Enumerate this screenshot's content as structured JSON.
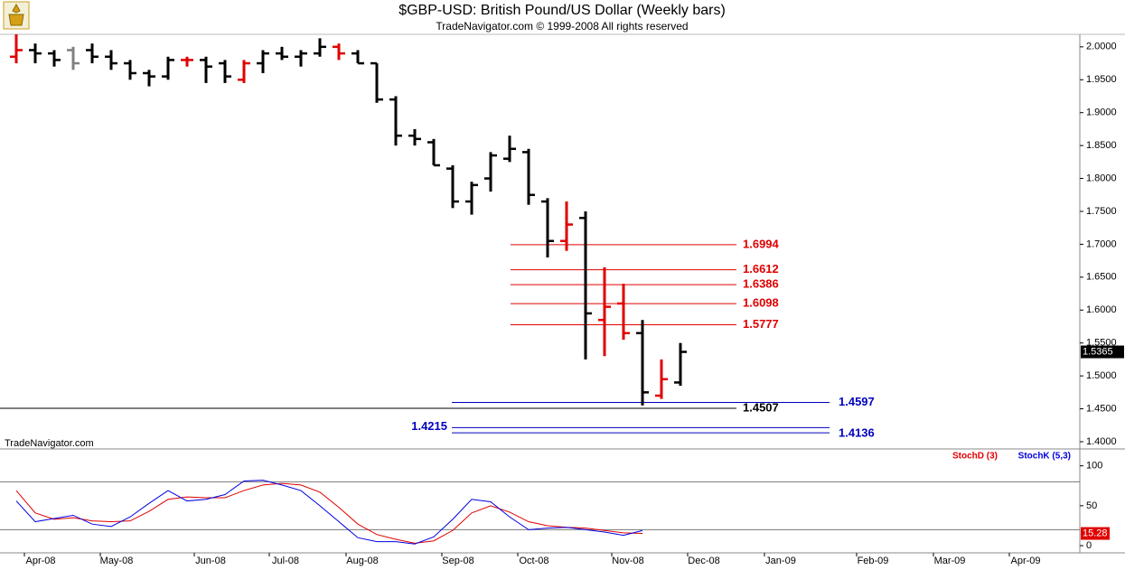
{
  "chart_data": [
    {
      "type": "ohlc",
      "title": "$GBP-USD:  British Pound/US Dollar  (Weekly bars)",
      "subtitle": "TradeNavigator.com © 1999-2008 All rights reserved",
      "watermark": "TradeNavigator.com",
      "open": [
        1.985,
        1.995,
        1.99,
        1.995,
        1.995,
        1.985,
        1.975,
        1.96,
        1.955,
        1.98,
        1.98,
        1.975,
        1.95,
        1.975,
        1.99,
        1.985,
        1.99,
        2.0,
        1.99,
        1.975,
        1.92,
        1.865,
        1.855,
        1.815,
        1.765,
        1.8,
        1.83,
        1.84,
        1.765,
        1.705,
        1.74,
        1.585,
        1.61,
        1.565,
        1.47,
        1.49
      ],
      "high": [
        2.019,
        2.005,
        1.995,
        2.0,
        2.005,
        1.995,
        1.98,
        1.965,
        1.985,
        1.985,
        1.985,
        1.98,
        1.98,
        1.995,
        2.0,
        1.995,
        2.013,
        2.005,
        1.995,
        1.975,
        1.925,
        1.875,
        1.86,
        1.82,
        1.795,
        1.84,
        1.865,
        1.845,
        1.77,
        1.765,
        1.75,
        1.665,
        1.64,
        1.585,
        1.525,
        1.55
      ],
      "low": [
        1.975,
        1.975,
        1.97,
        1.965,
        1.975,
        1.965,
        1.95,
        1.94,
        1.95,
        1.97,
        1.945,
        1.945,
        1.945,
        1.96,
        1.98,
        1.97,
        1.985,
        1.98,
        1.975,
        1.915,
        1.85,
        1.85,
        1.82,
        1.755,
        1.745,
        1.78,
        1.825,
        1.76,
        1.68,
        1.69,
        1.525,
        1.53,
        1.555,
        1.455,
        1.465,
        1.485
      ],
      "close": [
        1.995,
        1.99,
        1.98,
        1.975,
        1.985,
        1.975,
        1.96,
        1.955,
        1.98,
        1.98,
        1.97,
        1.955,
        1.975,
        1.99,
        1.985,
        1.99,
        2.0,
        1.99,
        1.975,
        1.92,
        1.865,
        1.86,
        1.82,
        1.765,
        1.79,
        1.835,
        1.845,
        1.775,
        1.705,
        1.73,
        1.595,
        1.605,
        1.565,
        1.475,
        1.495,
        1.5365
      ],
      "colors": [
        "#e00000",
        "#000000",
        "#000000",
        "#808080",
        "#000000",
        "#000000",
        "#000000",
        "#000000",
        "#000000",
        "#e00000",
        "#000000",
        "#000000",
        "#e00000",
        "#000000",
        "#000000",
        "#000000",
        "#000000",
        "#e00000",
        "#000000",
        "#000000",
        "#000000",
        "#000000",
        "#000000",
        "#000000",
        "#000000",
        "#000000",
        "#000000",
        "#000000",
        "#000000",
        "#e00000",
        "#000000",
        "#e00000",
        "#e00000",
        "#000000",
        "#e00000",
        "#000000"
      ],
      "levels": [
        {
          "value": 1.6994,
          "color": "#e00000"
        },
        {
          "value": 1.6612,
          "color": "#e00000"
        },
        {
          "value": 1.6386,
          "color": "#e00000"
        },
        {
          "value": 1.6098,
          "color": "#e00000"
        },
        {
          "value": 1.5777,
          "color": "#e00000"
        },
        {
          "value": 1.4597,
          "color": "#0000c0"
        },
        {
          "value": 1.4507,
          "color": "#000000"
        },
        {
          "value": 1.4215,
          "color": "#0000c0"
        },
        {
          "value": 1.4136,
          "color": "#0000c0"
        }
      ],
      "ylim": [
        1.389,
        2.019
      ],
      "yticks": [
        {
          "value": 2,
          "label": "2.0000"
        },
        {
          "value": 1.95,
          "label": "1.9500"
        },
        {
          "value": 1.9,
          "label": "1.9000"
        },
        {
          "value": 1.85,
          "label": "1.8500"
        },
        {
          "value": 1.8,
          "label": "1.8000"
        },
        {
          "value": 1.75,
          "label": "1.7500"
        },
        {
          "value": 1.7,
          "label": "1.7000"
        },
        {
          "value": 1.65,
          "label": "1.6500"
        },
        {
          "value": 1.6,
          "label": "1.6000"
        },
        {
          "value": 1.55,
          "label": "1.5500"
        },
        {
          "value": 1.5,
          "label": "1.5000"
        },
        {
          "value": 1.45,
          "label": "1.4500"
        },
        {
          "value": 1.4,
          "label": "1.4000"
        }
      ]
    },
    {
      "type": "line",
      "series": [
        {
          "name": "StochD (3)",
          "color": "#e00000",
          "values": [
            69,
            41,
            33,
            35,
            31,
            30,
            31,
            43,
            58,
            61,
            60,
            60,
            69,
            76,
            78,
            76,
            67,
            48,
            27,
            14,
            8,
            3,
            6,
            19,
            41,
            50,
            42,
            30,
            25,
            23,
            22,
            19,
            16,
            15.28
          ]
        },
        {
          "name": "StochK (5,3)",
          "color": "#0000e0",
          "values": [
            56,
            30,
            34,
            38,
            27,
            24,
            36,
            53,
            69,
            56,
            58,
            64,
            81,
            82,
            76,
            69,
            50,
            30,
            10,
            5,
            5,
            2,
            11,
            33,
            58,
            55,
            36,
            20,
            22,
            23,
            20,
            17,
            13,
            19
          ]
        }
      ],
      "ylim": [
        -9,
        120
      ],
      "yticks": [
        100,
        50,
        0
      ],
      "stoch_levels": [
        80,
        20
      ],
      "xtick_labels": [
        "Apr-08",
        "May-08",
        "Jun-08",
        "Jul-08",
        "Aug-08",
        "Sep-08",
        "Oct-08",
        "Nov-08",
        "Dec-08",
        "Jan-09",
        "Feb-09",
        "Mar-09",
        "Apr-09"
      ]
    }
  ]
}
